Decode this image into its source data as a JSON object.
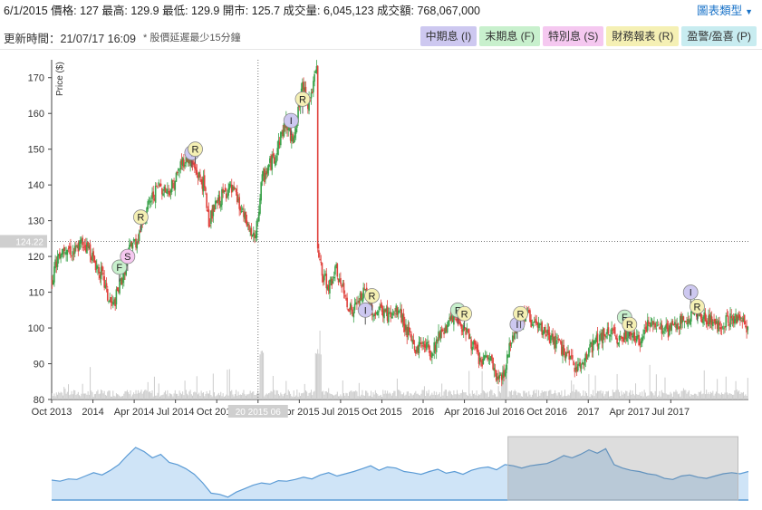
{
  "header": {
    "quote_text": "6/1/2015 價格: 127 最高: 129.9 最低: 129.9 開市: 125.7 成交量: 6,045,123 成交額: 768,067,000",
    "chart_type_label": "圖表類型",
    "updated_text": "更新時間：21/07/17 16:09",
    "delay_note": "* 股價延遲最少15分鐘"
  },
  "legend": [
    {
      "label": "中期息 (I)",
      "color": "#cdc8f0"
    },
    {
      "label": "末期息 (F)",
      "color": "#c8f0cd"
    },
    {
      "label": "特別息 (S)",
      "color": "#f5c8f0"
    },
    {
      "label": "財務報表 (R)",
      "color": "#f5f0b4"
    },
    {
      "label": "盈警/盈喜 (P)",
      "color": "#c8ecf0"
    }
  ],
  "chart_data": {
    "type": "candlestick",
    "ylabel": "Price ($)",
    "ylim": [
      80,
      175
    ],
    "yticks": [
      80,
      90,
      100,
      110,
      120,
      130,
      140,
      150,
      160,
      170
    ],
    "xlim": [
      2013.75,
      2017.97
    ],
    "xticks": [
      {
        "t": 2013.75,
        "label": "Oct 2013"
      },
      {
        "t": 2014.0,
        "label": "2014"
      },
      {
        "t": 2014.25,
        "label": "Apr 2014"
      },
      {
        "t": 2014.5,
        "label": "Jul 2014"
      },
      {
        "t": 2014.75,
        "label": "Oct 2014"
      },
      {
        "t": 2015.0,
        "label": "2015"
      },
      {
        "t": 2015.25,
        "label": "Apr 2015"
      },
      {
        "t": 2015.5,
        "label": "Jul 2015"
      },
      {
        "t": 2015.75,
        "label": "Oct 2015"
      },
      {
        "t": 2016.0,
        "label": "2016"
      },
      {
        "t": 2016.25,
        "label": "Apr 2016"
      },
      {
        "t": 2016.5,
        "label": "Jul 2016"
      },
      {
        "t": 2016.75,
        "label": "Oct 2016"
      },
      {
        "t": 2017.0,
        "label": "2017"
      },
      {
        "t": 2017.25,
        "label": "Apr 2017"
      },
      {
        "t": 2017.5,
        "label": "Jul 2017"
      }
    ],
    "price_path": [
      [
        2013.75,
        114
      ],
      [
        2013.79,
        121
      ],
      [
        2013.83,
        123
      ],
      [
        2013.88,
        121
      ],
      [
        2013.93,
        124
      ],
      [
        2013.98,
        122
      ],
      [
        2014.0,
        119
      ],
      [
        2014.05,
        115
      ],
      [
        2014.09,
        108
      ],
      [
        2014.12,
        106
      ],
      [
        2014.16,
        112
      ],
      [
        2014.2,
        118
      ],
      [
        2014.23,
        124
      ],
      [
        2014.26,
        124
      ],
      [
        2014.3,
        130
      ],
      [
        2014.35,
        136
      ],
      [
        2014.4,
        140
      ],
      [
        2014.45,
        138
      ],
      [
        2014.5,
        142
      ],
      [
        2014.53,
        146
      ],
      [
        2014.57,
        148
      ],
      [
        2014.62,
        144
      ],
      [
        2014.67,
        140
      ],
      [
        2014.7,
        130
      ],
      [
        2014.74,
        134
      ],
      [
        2014.78,
        137
      ],
      [
        2014.82,
        139
      ],
      [
        2014.86,
        137
      ],
      [
        2014.9,
        132
      ],
      [
        2014.94,
        128
      ],
      [
        2014.98,
        124
      ],
      [
        2015.02,
        141
      ],
      [
        2015.06,
        145
      ],
      [
        2015.1,
        148
      ],
      [
        2015.13,
        153
      ],
      [
        2015.17,
        158
      ],
      [
        2015.2,
        152
      ],
      [
        2015.24,
        160
      ],
      [
        2015.27,
        168
      ],
      [
        2015.3,
        163
      ],
      [
        2015.33,
        167
      ],
      [
        2015.35,
        172
      ],
      [
        2015.36,
        121
      ],
      [
        2015.39,
        114
      ],
      [
        2015.43,
        112
      ],
      [
        2015.47,
        116
      ],
      [
        2015.52,
        109
      ],
      [
        2015.57,
        104
      ],
      [
        2015.61,
        108
      ],
      [
        2015.65,
        110
      ],
      [
        2015.7,
        104
      ],
      [
        2015.75,
        105
      ],
      [
        2015.8,
        103
      ],
      [
        2015.85,
        105
      ],
      [
        2015.9,
        99
      ],
      [
        2015.95,
        94
      ],
      [
        2016.0,
        96
      ],
      [
        2016.05,
        93
      ],
      [
        2016.1,
        99
      ],
      [
        2016.15,
        101
      ],
      [
        2016.2,
        103
      ],
      [
        2016.25,
        100
      ],
      [
        2016.3,
        95
      ],
      [
        2016.35,
        90
      ],
      [
        2016.4,
        92
      ],
      [
        2016.45,
        85
      ],
      [
        2016.49,
        88
      ],
      [
        2016.53,
        97
      ],
      [
        2016.57,
        101
      ],
      [
        2016.62,
        104
      ],
      [
        2016.67,
        101
      ],
      [
        2016.72,
        99
      ],
      [
        2016.78,
        97
      ],
      [
        2016.84,
        94
      ],
      [
        2016.9,
        90
      ],
      [
        2016.95,
        89
      ],
      [
        2017.0,
        94
      ],
      [
        2017.06,
        97
      ],
      [
        2017.12,
        99
      ],
      [
        2017.18,
        97
      ],
      [
        2017.24,
        99
      ],
      [
        2017.3,
        96
      ],
      [
        2017.36,
        101
      ],
      [
        2017.42,
        101
      ],
      [
        2017.48,
        99
      ],
      [
        2017.53,
        101
      ],
      [
        2017.58,
        102
      ],
      [
        2017.63,
        105
      ],
      [
        2017.68,
        103
      ],
      [
        2017.73,
        102
      ],
      [
        2017.78,
        101
      ],
      [
        2017.84,
        102
      ],
      [
        2017.9,
        103
      ],
      [
        2017.97,
        100
      ]
    ],
    "events": [
      {
        "type": "F",
        "label": "F",
        "t": 2014.16,
        "price": 117
      },
      {
        "type": "S",
        "label": "S",
        "t": 2014.21,
        "price": 120
      },
      {
        "type": "R",
        "label": "R",
        "t": 2014.29,
        "price": 131
      },
      {
        "type": "I",
        "label": "I",
        "t": 2014.6,
        "price": 149
      },
      {
        "type": "R",
        "label": "R",
        "t": 2014.62,
        "price": 150
      },
      {
        "type": "I",
        "label": "I",
        "t": 2015.2,
        "price": 158
      },
      {
        "type": "R",
        "label": "R",
        "t": 2015.27,
        "price": 164
      },
      {
        "type": "I",
        "label": "I",
        "t": 2015.65,
        "price": 105
      },
      {
        "type": "R",
        "label": "R",
        "t": 2015.69,
        "price": 109
      },
      {
        "type": "F",
        "label": "F",
        "t": 2016.21,
        "price": 105
      },
      {
        "type": "R",
        "label": "R",
        "t": 2016.25,
        "price": 104
      },
      {
        "type": "I",
        "label": "I",
        "t": 2016.57,
        "price": 101
      },
      {
        "type": "R",
        "label": "R",
        "t": 2016.59,
        "price": 104
      },
      {
        "type": "F",
        "label": "F",
        "t": 2017.22,
        "price": 103
      },
      {
        "type": "R",
        "label": "R",
        "t": 2017.25,
        "price": 101
      },
      {
        "type": "I",
        "label": "I",
        "t": 2017.62,
        "price": 110
      },
      {
        "type": "R",
        "label": "R",
        "t": 2017.66,
        "price": 106
      }
    ],
    "event_colors": {
      "I": "#cdc8f0",
      "F": "#c8f0cd",
      "S": "#f5c8f0",
      "R": "#f5f0b4",
      "P": "#c8ecf0"
    },
    "crosshair": {
      "t": 2015.0,
      "price": 124.22,
      "price_label": "124.22",
      "date_label": "20 2015 06"
    },
    "up_color": "#3aa24a",
    "down_color": "#e0413c",
    "volume_color": "#cccccc",
    "navigator": {
      "line_color": "#5b9bd5",
      "fill_color": "#cfe4f7",
      "selected_range": [
        0.655,
        0.985
      ],
      "path": [
        0.35,
        0.33,
        0.37,
        0.36,
        0.42,
        0.48,
        0.44,
        0.52,
        0.62,
        0.78,
        0.92,
        0.85,
        0.74,
        0.8,
        0.66,
        0.62,
        0.55,
        0.45,
        0.3,
        0.12,
        0.1,
        0.05,
        0.14,
        0.2,
        0.26,
        0.3,
        0.28,
        0.34,
        0.33,
        0.36,
        0.4,
        0.37,
        0.44,
        0.48,
        0.42,
        0.46,
        0.5,
        0.55,
        0.6,
        0.52,
        0.58,
        0.56,
        0.5,
        0.48,
        0.45,
        0.5,
        0.54,
        0.47,
        0.5,
        0.45,
        0.52,
        0.56,
        0.58,
        0.53,
        0.62,
        0.6,
        0.56,
        0.6,
        0.62,
        0.64,
        0.7,
        0.78,
        0.74,
        0.8,
        0.88,
        0.82,
        0.9,
        0.62,
        0.56,
        0.52,
        0.5,
        0.46,
        0.44,
        0.38,
        0.36,
        0.42,
        0.44,
        0.4,
        0.38,
        0.42,
        0.46,
        0.48,
        0.46,
        0.5
      ]
    }
  }
}
